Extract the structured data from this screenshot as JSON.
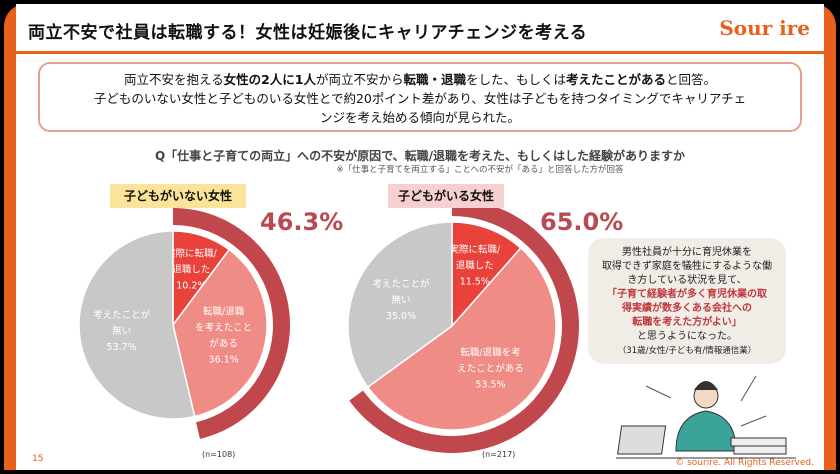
{
  "header": {
    "title": "両立不安で社員は転職する！女性は妊娠後にキャリアチェンジを考える",
    "logo": "Sour ire"
  },
  "summary": {
    "line1_a": "両立不安を抱える",
    "line1_b": "女性の2人に1人",
    "line1_c": "が両立不安から",
    "line1_d": "転職・退職",
    "line1_e": "をした、もしくは",
    "line1_f": "考えたことがある",
    "line1_g": "と回答。",
    "line2": "子どものいない女性と子どものいる女性とで約20ポイント差があり、女性は子どもを持つタイミングでキャリアチェ",
    "line3": "ンジを考え始める傾向が見られた。"
  },
  "chart_data": [
    {
      "type": "pie",
      "title": "子どもがいない女性",
      "categories": [
        "実際に転職/退職した",
        "転職/退職を考えたことがある",
        "考えたことが無い"
      ],
      "values": [
        10.2,
        36.1,
        53.7
      ],
      "total_highlight": "46.3%",
      "n": "(n=108)",
      "colors": [
        "#e8423a",
        "#f08c86",
        "#c8c8c8"
      ],
      "ring_color": "#c0474c"
    },
    {
      "type": "pie",
      "title": "子どもがいる女性",
      "categories": [
        "実際に転職/退職した",
        "転職/退職を考えたことがある",
        "考えたことが無い"
      ],
      "values": [
        11.5,
        53.5,
        35.0
      ],
      "total_highlight": "65.0%",
      "n": "(n=217)",
      "colors": [
        "#e8423a",
        "#f08c86",
        "#c8c8c8"
      ],
      "ring_color": "#c0474c"
    }
  ],
  "question": "Q「仕事と子育ての両立」への不安が原因で、転職/退職を考えた、もしくはした経験がありますか",
  "note": "※「仕事と子育てを両立する」ことへの不安が「ある」と回答した方が回答",
  "quote": {
    "l1": "男性社員が十分に育児休業を",
    "l2": "取得できず家庭を犠牲にするような働",
    "l3": "き方している状況を見て、",
    "r1": "「子育て経験者が多く育児休業の取",
    "r2": "得実績が数多くある会社への",
    "r3": "転職を考えた方がよい」",
    "l4": "と思うようになった。",
    "src": "（31歳/女性/子ども有/情報通信業）"
  },
  "footer": {
    "page": "15",
    "copyright": "© sourire. All Rights Reserved."
  }
}
